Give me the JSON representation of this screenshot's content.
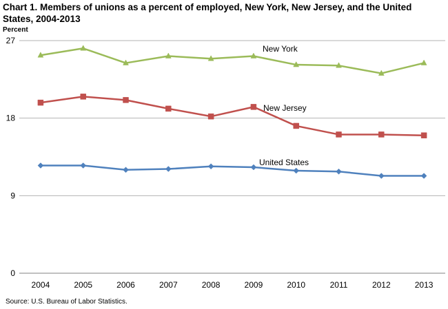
{
  "title": "Chart 1. Members of unions as a percent of employed, New York,  New Jersey, and the United States, 2004-2013",
  "y_unit_label": "Percent",
  "source": "Source: U.S. Bureau of Labor  Statistics.",
  "chart_data": {
    "type": "line",
    "title": "Chart 1. Members of unions as a percent of employed, New York,  New Jersey, and the United States, 2004-2013",
    "xlabel": "",
    "ylabel": "Percent",
    "x": [
      "2004",
      "2005",
      "2006",
      "2007",
      "2008",
      "2009",
      "2010",
      "2011",
      "2012",
      "2013"
    ],
    "ylim": [
      0,
      27
    ],
    "yticks": [
      0,
      9,
      18,
      27
    ],
    "grid": "horizontal",
    "legend": "none",
    "series": [
      {
        "name": "New York",
        "color": "#9BBB59",
        "marker": "triangle",
        "values": [
          25.3,
          26.1,
          24.4,
          25.2,
          24.9,
          25.2,
          24.2,
          24.1,
          23.2,
          24.4
        ]
      },
      {
        "name": "New Jersey",
        "color": "#C0504D",
        "marker": "square",
        "values": [
          19.8,
          20.5,
          20.1,
          19.1,
          18.2,
          19.3,
          17.1,
          16.1,
          16.1,
          16.0
        ]
      },
      {
        "name": "United States",
        "color": "#4F81BD",
        "marker": "diamond",
        "values": [
          12.5,
          12.5,
          12.0,
          12.1,
          12.4,
          12.3,
          11.9,
          11.8,
          11.3,
          11.3
        ]
      }
    ]
  }
}
